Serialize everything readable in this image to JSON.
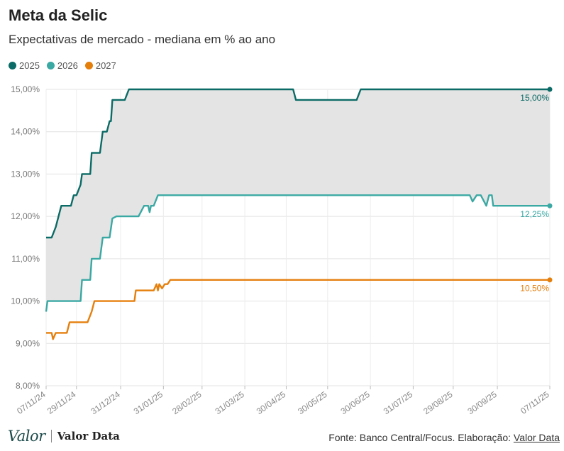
{
  "header": {
    "title": "Meta da Selic",
    "subtitle": "Expectativas de mercado - mediana em % ao ano"
  },
  "footer": {
    "logo": "Valor",
    "brand": "Valor Data",
    "source_prefix": "Fonte: Banco Central/Focus. Elaboração: ",
    "source_link": "Valor Data"
  },
  "chart_data": {
    "type": "line",
    "title": "Meta da Selic",
    "subtitle": "Expectativas de mercado - mediana em % ao ano",
    "xlabel": "",
    "ylabel": "",
    "x_ticks": [
      "07/11/24",
      "29/11/24",
      "31/12/24",
      "31/01/25",
      "28/02/25",
      "31/03/25",
      "30/04/25",
      "30/05/25",
      "30/06/25",
      "31/07/25",
      "29/08/25",
      "30/09/25",
      "07/11/25"
    ],
    "y_ticks": [
      "8,00%",
      "9,00%",
      "10,00%",
      "11,00%",
      "12,00%",
      "13,00%",
      "14,00%",
      "15,00%"
    ],
    "ylim": [
      8,
      15
    ],
    "xlim": [
      "2024-11-07",
      "2025-11-07"
    ],
    "grid": true,
    "legend": "top-left",
    "shaded_band": "between 2025 and 2026",
    "series": [
      {
        "name": "2025",
        "color": "#0b6b66",
        "end_label": "15,00%",
        "points": [
          [
            "2024-11-07",
            11.5
          ],
          [
            "2024-11-11",
            11.5
          ],
          [
            "2024-11-14",
            11.75
          ],
          [
            "2024-11-18",
            12.25
          ],
          [
            "2024-11-25",
            12.25
          ],
          [
            "2024-11-27",
            12.5
          ],
          [
            "2024-11-29",
            12.5
          ],
          [
            "2024-12-02",
            12.75
          ],
          [
            "2024-12-03",
            13.0
          ],
          [
            "2024-12-09",
            13.0
          ],
          [
            "2024-12-10",
            13.5
          ],
          [
            "2024-12-16",
            13.5
          ],
          [
            "2024-12-18",
            14.0
          ],
          [
            "2024-12-21",
            14.0
          ],
          [
            "2024-12-23",
            14.25
          ],
          [
            "2024-12-24",
            14.25
          ],
          [
            "2024-12-25",
            14.75
          ],
          [
            "2025-01-03",
            14.75
          ],
          [
            "2025-01-06",
            15.0
          ],
          [
            "2025-05-05",
            15.0
          ],
          [
            "2025-05-07",
            14.75
          ],
          [
            "2025-06-20",
            14.75
          ],
          [
            "2025-06-23",
            15.0
          ],
          [
            "2025-11-07",
            15.0
          ]
        ]
      },
      {
        "name": "2026",
        "color": "#3aa8a3",
        "end_label": "12,25%",
        "points": [
          [
            "2024-11-07",
            9.75
          ],
          [
            "2024-11-08",
            10.0
          ],
          [
            "2024-12-02",
            10.0
          ],
          [
            "2024-12-03",
            10.5
          ],
          [
            "2024-12-09",
            10.5
          ],
          [
            "2024-12-10",
            11.0
          ],
          [
            "2024-12-16",
            11.0
          ],
          [
            "2024-12-18",
            11.5
          ],
          [
            "2024-12-23",
            11.5
          ],
          [
            "2024-12-25",
            11.95
          ],
          [
            "2024-12-28",
            12.0
          ],
          [
            "2025-01-13",
            12.0
          ],
          [
            "2025-01-17",
            12.25
          ],
          [
            "2025-01-20",
            12.25
          ],
          [
            "2025-01-21",
            12.1
          ],
          [
            "2025-01-22",
            12.25
          ],
          [
            "2025-01-24",
            12.25
          ],
          [
            "2025-01-27",
            12.5
          ],
          [
            "2025-09-10",
            12.5
          ],
          [
            "2025-09-12",
            12.35
          ],
          [
            "2025-09-15",
            12.5
          ],
          [
            "2025-09-18",
            12.5
          ],
          [
            "2025-09-22",
            12.25
          ],
          [
            "2025-09-24",
            12.5
          ],
          [
            "2025-09-26",
            12.5
          ],
          [
            "2025-09-27",
            12.25
          ],
          [
            "2025-11-07",
            12.25
          ]
        ]
      },
      {
        "name": "2027",
        "color": "#e57f0c",
        "end_label": "10,50%",
        "points": [
          [
            "2024-11-07",
            9.25
          ],
          [
            "2024-11-11",
            9.25
          ],
          [
            "2024-11-12",
            9.1
          ],
          [
            "2024-11-14",
            9.25
          ],
          [
            "2024-11-22",
            9.25
          ],
          [
            "2024-11-24",
            9.5
          ],
          [
            "2024-12-07",
            9.5
          ],
          [
            "2024-12-10",
            9.75
          ],
          [
            "2024-12-12",
            10.0
          ],
          [
            "2025-01-10",
            10.0
          ],
          [
            "2025-01-11",
            10.25
          ],
          [
            "2025-01-24",
            10.25
          ],
          [
            "2025-01-26",
            10.4
          ],
          [
            "2025-01-27",
            10.25
          ],
          [
            "2025-01-28",
            10.4
          ],
          [
            "2025-01-30",
            10.3
          ],
          [
            "2025-02-01",
            10.4
          ],
          [
            "2025-02-03",
            10.4
          ],
          [
            "2025-02-05",
            10.5
          ],
          [
            "2025-11-07",
            10.5
          ]
        ]
      }
    ]
  }
}
